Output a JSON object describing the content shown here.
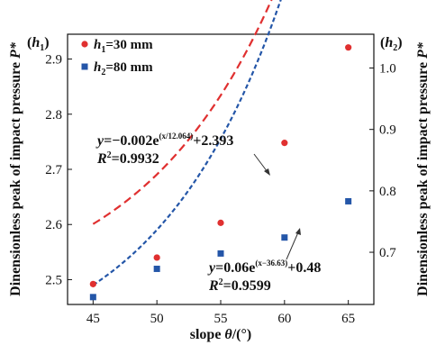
{
  "chart_data": {
    "type": "scatter",
    "xlabel": "slope θ/(°)",
    "ylabel_left": "Dinensionless peak of impact pressure P*",
    "ylabel_right": "Dinensionless peak of impact pressure P*",
    "left_axis_tag": "(h1)",
    "right_axis_tag": "(h2)",
    "x_ticks": [
      "45",
      "50",
      "55",
      "60",
      "65"
    ],
    "y_left_ticks": [
      "2.5",
      "2.6",
      "2.7",
      "2.8",
      "2.9"
    ],
    "y_right_ticks": [
      "0.7",
      "0.8",
      "0.9",
      "1.0"
    ],
    "xlim": [
      43,
      67
    ],
    "ylim_left": [
      2.455,
      2.945
    ],
    "ylim_right": [
      0.615,
      1.055
    ],
    "series": [
      {
        "name": "h1=30 mm",
        "axis": "left",
        "color": "#e03030",
        "marker": "circle",
        "x": [
          45,
          50,
          55,
          60,
          65
        ],
        "y": [
          2.492,
          2.54,
          2.603,
          2.748,
          2.921
        ],
        "equation": "y=−0.002e(x/12.064)+2.393",
        "r2": "R2=0.9932"
      },
      {
        "name": "h2=80 mm",
        "axis": "right",
        "color": "#2456a8",
        "marker": "square",
        "x": [
          45,
          50,
          55,
          60,
          65
        ],
        "y": [
          0.627,
          0.673,
          0.698,
          0.724,
          0.783
        ],
        "equation": "y=0.06e(x−36.63)+0.48",
        "r2": "R2=0.9599"
      }
    ]
  },
  "legend": {
    "item1": {
      "h": "h",
      "sub": "1",
      "rest": "=30 mm"
    },
    "item2": {
      "h": "h",
      "sub": "2",
      "rest": "=80 mm"
    }
  },
  "tags": {
    "left": {
      "open": "(",
      "h": "h",
      "sub": "1",
      "close": ")"
    },
    "right": {
      "open": "(",
      "h": "h",
      "sub": "2",
      "close": ")"
    }
  },
  "ylabel_parts": {
    "main": "Dinensionless peak of impact pressure ",
    "sym": "P*"
  },
  "xlabel_parts": {
    "main": "slope ",
    "sym": "θ",
    "unit": "/(°)"
  },
  "eq1": {
    "y": "y",
    "mid": "=−0.002e",
    "exp": "(x/12.064)",
    "end": "+2.393",
    "r": "R",
    "rsup": "2",
    "rval": "=0.9932"
  },
  "eq2": {
    "y": "y",
    "mid": "=0.06e",
    "exp": "(x−36.63)",
    "end": "+0.48",
    "r": "R",
    "rsup": "2",
    "rval": "=0.9599"
  }
}
